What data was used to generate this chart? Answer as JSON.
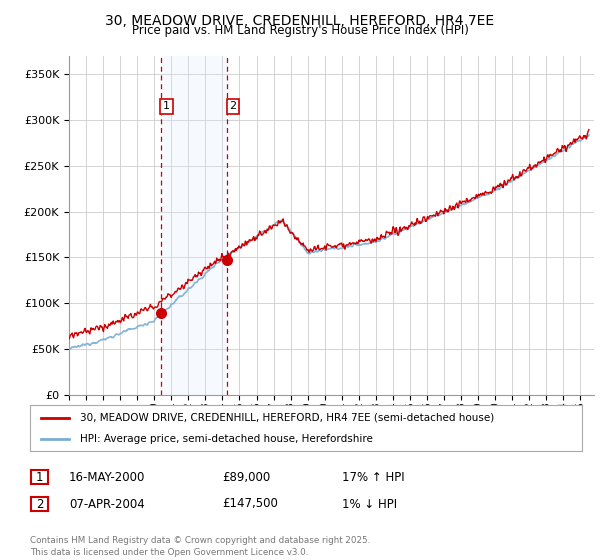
{
  "title_line1": "30, MEADOW DRIVE, CREDENHILL, HEREFORD, HR4 7EE",
  "title_line2": "Price paid vs. HM Land Registry's House Price Index (HPI)",
  "background_color": "#ffffff",
  "plot_bg_color": "#ffffff",
  "grid_color": "#cccccc",
  "hpi_line_color": "#7aadd4",
  "price_line_color": "#cc0000",
  "shade_color": "#ddeeff",
  "purchase1_x": 2000.37,
  "purchase1_y": 89000,
  "purchase2_x": 2004.27,
  "purchase2_y": 147500,
  "purchase1_label": "1",
  "purchase2_label": "2",
  "marker_color": "#cc0000",
  "dashed_line_color": "#cc0000",
  "shade_alpha": 0.25,
  "legend_label1": "30, MEADOW DRIVE, CREDENHILL, HEREFORD, HR4 7EE (semi-detached house)",
  "legend_label2": "HPI: Average price, semi-detached house, Herefordshire",
  "table_row1": [
    "1",
    "16-MAY-2000",
    "£89,000",
    "17% ↑ HPI"
  ],
  "table_row2": [
    "2",
    "07-APR-2004",
    "£147,500",
    "1% ↓ HPI"
  ],
  "footnote": "Contains HM Land Registry data © Crown copyright and database right 2025.\nThis data is licensed under the Open Government Licence v3.0.",
  "ylim": [
    0,
    370000
  ],
  "yticks": [
    0,
    50000,
    100000,
    150000,
    200000,
    250000,
    300000,
    350000
  ],
  "xlim_start": 1995.0,
  "xlim_end": 2025.8
}
